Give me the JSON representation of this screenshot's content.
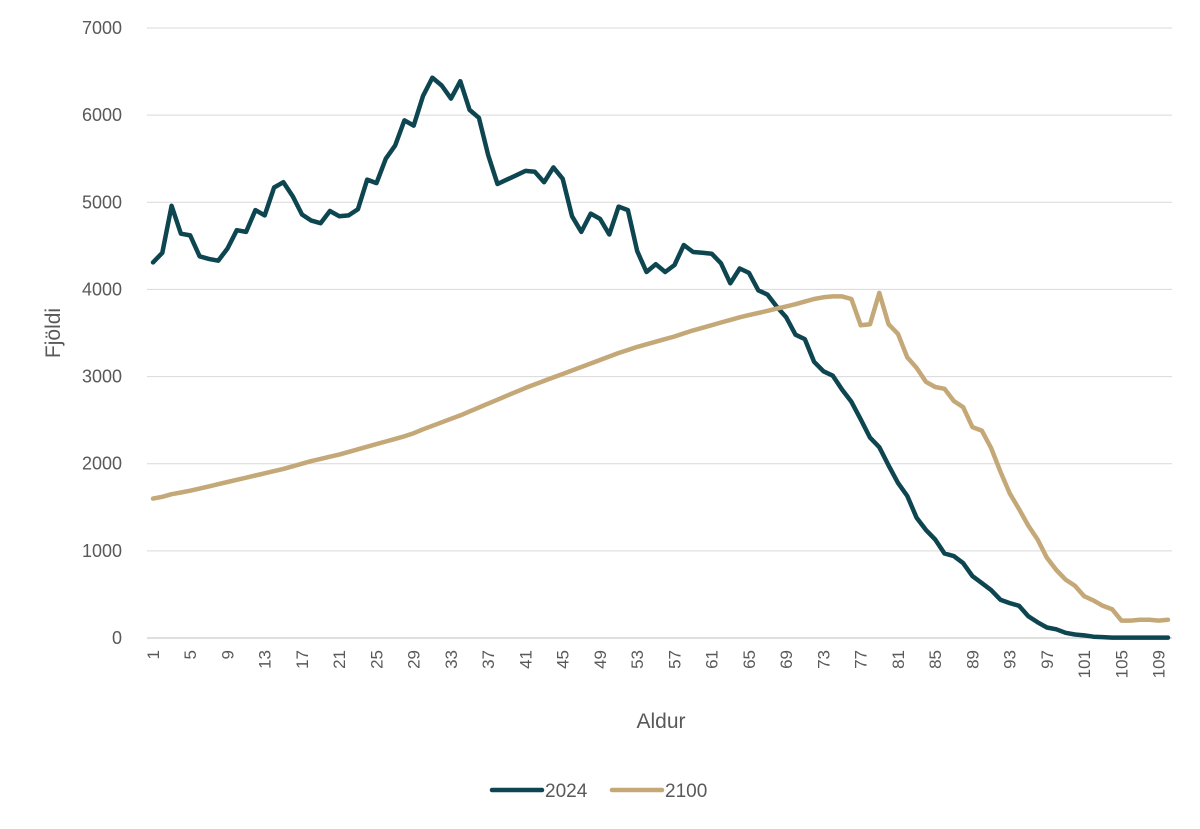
{
  "chart_data": {
    "type": "line",
    "xlabel": "Aldur",
    "ylabel": "Fjöldi",
    "ylim": [
      0,
      7000
    ],
    "yticks": [
      0,
      1000,
      2000,
      3000,
      4000,
      5000,
      6000,
      7000
    ],
    "xtick_labels": [
      "1",
      "5",
      "9",
      "13",
      "17",
      "21",
      "25",
      "29",
      "33",
      "37",
      "41",
      "45",
      "49",
      "53",
      "57",
      "61",
      "65",
      "69",
      "73",
      "77",
      "81",
      "85",
      "89",
      "93",
      "97",
      "101",
      "105",
      "109"
    ],
    "x": [
      1,
      2,
      3,
      4,
      5,
      6,
      7,
      8,
      9,
      10,
      11,
      12,
      13,
      14,
      15,
      16,
      17,
      18,
      19,
      20,
      21,
      22,
      23,
      24,
      25,
      26,
      27,
      28,
      29,
      30,
      31,
      32,
      33,
      34,
      35,
      36,
      37,
      38,
      39,
      40,
      41,
      42,
      43,
      44,
      45,
      46,
      47,
      48,
      49,
      50,
      51,
      52,
      53,
      54,
      55,
      56,
      57,
      58,
      59,
      60,
      61,
      62,
      63,
      64,
      65,
      66,
      67,
      68,
      69,
      70,
      71,
      72,
      73,
      74,
      75,
      76,
      77,
      78,
      79,
      80,
      81,
      82,
      83,
      84,
      85,
      86,
      87,
      88,
      89,
      90,
      91,
      92,
      93,
      94,
      95,
      96,
      97,
      98,
      99,
      100,
      101,
      102,
      103,
      104,
      105,
      106,
      107,
      108,
      109,
      110
    ],
    "legend_position": "bottom",
    "series": [
      {
        "name": "2024",
        "color": "#0d4650",
        "values": [
          4310,
          4420,
          4960,
          4640,
          4620,
          4380,
          4350,
          4330,
          4470,
          4680,
          4660,
          4910,
          4850,
          5170,
          5230,
          5070,
          4860,
          4790,
          4760,
          4900,
          4840,
          4850,
          4920,
          5260,
          5220,
          5500,
          5650,
          5940,
          5880,
          6220,
          6430,
          6340,
          6190,
          6390,
          6060,
          5970,
          5540,
          5210,
          5260,
          5310,
          5360,
          5350,
          5230,
          5400,
          5270,
          4840,
          4660,
          4870,
          4810,
          4630,
          4950,
          4910,
          4440,
          4200,
          4290,
          4200,
          4280,
          4510,
          4430,
          4420,
          4410,
          4300,
          4070,
          4240,
          4190,
          3990,
          3940,
          3800,
          3680,
          3480,
          3430,
          3170,
          3060,
          3010,
          2850,
          2710,
          2510,
          2300,
          2190,
          1980,
          1780,
          1630,
          1380,
          1240,
          1130,
          970,
          940,
          860,
          710,
          630,
          550,
          440,
          400,
          370,
          250,
          180,
          120,
          100,
          60,
          40,
          30,
          15,
          10,
          5,
          5,
          5,
          5,
          5,
          5,
          5
        ]
      },
      {
        "name": "2100",
        "color": "#c4a878",
        "values": [
          1600,
          1620,
          1650,
          1670,
          1690,
          1715,
          1740,
          1765,
          1790,
          1815,
          1840,
          1865,
          1890,
          1915,
          1940,
          1970,
          2000,
          2030,
          2055,
          2080,
          2105,
          2135,
          2165,
          2195,
          2225,
          2255,
          2285,
          2315,
          2350,
          2395,
          2435,
          2475,
          2515,
          2555,
          2600,
          2645,
          2690,
          2735,
          2780,
          2825,
          2870,
          2910,
          2950,
          2990,
          3030,
          3070,
          3110,
          3150,
          3190,
          3230,
          3270,
          3305,
          3340,
          3370,
          3400,
          3430,
          3460,
          3495,
          3530,
          3560,
          3590,
          3620,
          3650,
          3680,
          3705,
          3730,
          3755,
          3780,
          3805,
          3830,
          3860,
          3890,
          3910,
          3920,
          3920,
          3890,
          3590,
          3600,
          3960,
          3600,
          3490,
          3220,
          3100,
          2940,
          2880,
          2860,
          2720,
          2650,
          2420,
          2380,
          2180,
          1910,
          1660,
          1480,
          1290,
          1130,
          920,
          780,
          670,
          600,
          480,
          430,
          370,
          330,
          200,
          200,
          210,
          210,
          200,
          210
        ]
      }
    ]
  }
}
